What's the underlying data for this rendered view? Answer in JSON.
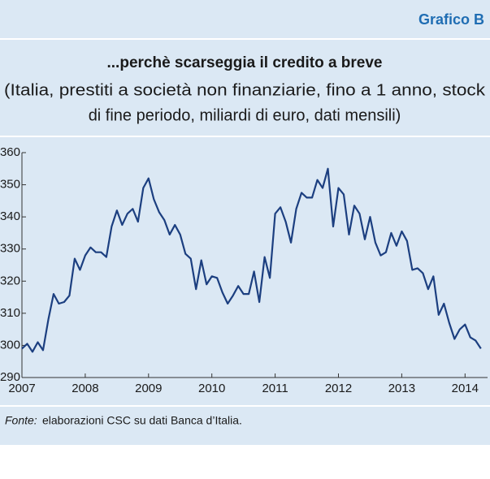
{
  "chart_data": {
    "type": "line",
    "label": "Grafico B",
    "title": "...perchè scarseggia il credito a breve",
    "subtitle_lines": [
      "(Italia, prestiti a società non finanziarie, fino a 1 anno, stock",
      "di fine periodo, miliardi di euro, dati mensili)"
    ],
    "categories": [
      "2007",
      null,
      null,
      null,
      null,
      null,
      null,
      null,
      null,
      null,
      null,
      null,
      "2008",
      null,
      null,
      null,
      null,
      null,
      null,
      null,
      null,
      null,
      null,
      null,
      "2009",
      null,
      null,
      null,
      null,
      null,
      null,
      null,
      null,
      null,
      null,
      null,
      "2010",
      null,
      null,
      null,
      null,
      null,
      null,
      null,
      null,
      null,
      null,
      null,
      "2011",
      null,
      null,
      null,
      null,
      null,
      null,
      null,
      null,
      null,
      null,
      null,
      "2012",
      null,
      null,
      null,
      null,
      null,
      null,
      null,
      null,
      null,
      null,
      null,
      "2013",
      null,
      null,
      null,
      null,
      null,
      null,
      null,
      null,
      null,
      null,
      null,
      "2014",
      null,
      null,
      null
    ],
    "values": [
      299,
      300.5,
      298,
      301,
      298.5,
      308,
      316,
      313,
      313.5,
      315.5,
      327,
      323.5,
      328,
      330.5,
      329,
      329,
      327.5,
      337,
      342,
      337.5,
      341,
      342.5,
      338.5,
      349,
      352,
      345.5,
      341.5,
      339,
      334.5,
      337.5,
      334.5,
      328.5,
      327,
      317.5,
      326.5,
      319,
      321.5,
      321,
      316.5,
      313,
      315.5,
      318.5,
      316,
      316,
      323,
      313.5,
      327.5,
      321,
      341,
      343,
      338.5,
      332,
      342.5,
      347.5,
      346,
      346,
      351.5,
      349,
      355,
      337,
      349,
      347,
      334.5,
      343.5,
      341,
      333,
      340,
      332,
      328,
      329,
      335,
      331,
      335.5,
      332.5,
      323.5,
      324,
      322.5,
      317.5,
      321.5,
      309.5,
      313,
      307,
      302,
      305,
      306.5,
      302.5,
      301.5,
      299
    ],
    "color": "#1c3f80",
    "ylim": [
      290,
      360
    ],
    "yticks": [
      290,
      300,
      310,
      320,
      330,
      340,
      350,
      360
    ],
    "source_label": "Fonte:",
    "source_text": "elaborazioni CSC su dati Banca d’Italia."
  }
}
